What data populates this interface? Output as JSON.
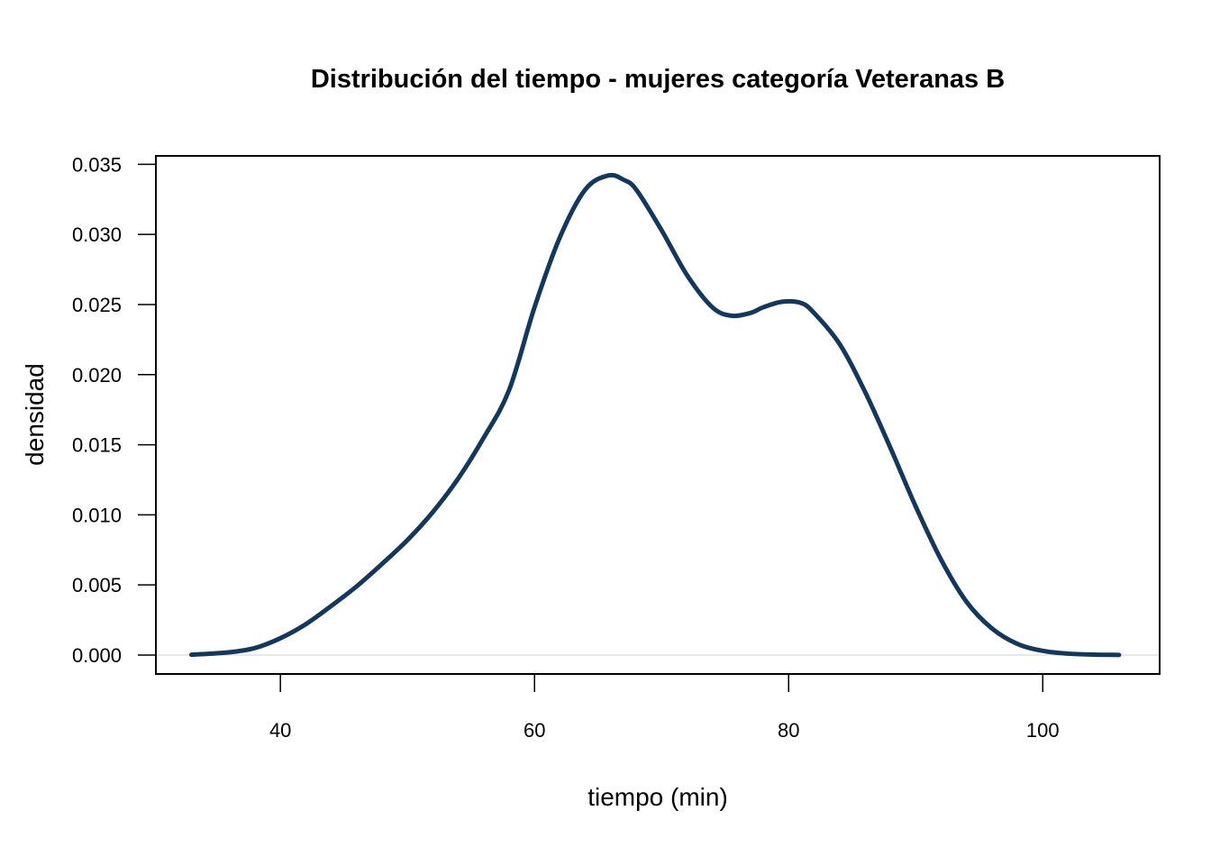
{
  "chart_data": {
    "type": "line",
    "title": "Distribución del tiempo - mujeres categoría Veteranas B",
    "xlabel": "tiempo (min)",
    "ylabel": "densidad",
    "xlim": [
      30.2,
      109.2
    ],
    "ylim": [
      -0.00135,
      0.0356
    ],
    "x_ticks": [
      40,
      60,
      80,
      100
    ],
    "x_tick_labels": [
      "40",
      "60",
      "80",
      "100"
    ],
    "y_ticks": [
      0,
      0.005,
      0.01,
      0.015,
      0.02,
      0.025,
      0.03,
      0.035
    ],
    "y_tick_labels": [
      "0.000",
      "0.005",
      "0.010",
      "0.015",
      "0.020",
      "0.025",
      "0.030",
      "0.035"
    ],
    "grid": false,
    "baseline": 0,
    "line_color": "#14375e",
    "baseline_color": "#d9d9d9",
    "series": [
      {
        "x": [
          33,
          36,
          38,
          40,
          42,
          44,
          46,
          48,
          50,
          52,
          54,
          56,
          58,
          60,
          62,
          64,
          65.8,
          67,
          68,
          70,
          72,
          74,
          75.5,
          77,
          78,
          79.5,
          81,
          82,
          84,
          86,
          88,
          90,
          92,
          94,
          96,
          98,
          100,
          102,
          104,
          106
        ],
        "y": [
          2e-05,
          0.0002,
          0.0005,
          0.0012,
          0.0022,
          0.0035,
          0.0049,
          0.0065,
          0.0082,
          0.0102,
          0.0126,
          0.0155,
          0.0189,
          0.0248,
          0.0298,
          0.0332,
          0.0342,
          0.0339,
          0.0332,
          0.0303,
          0.0271,
          0.0248,
          0.0242,
          0.0244,
          0.0248,
          0.0252,
          0.0251,
          0.0244,
          0.0222,
          0.0188,
          0.0148,
          0.0106,
          0.0068,
          0.0038,
          0.0019,
          0.0008,
          0.0003,
          0.0001,
          3e-05,
          1e-05
        ]
      }
    ]
  }
}
